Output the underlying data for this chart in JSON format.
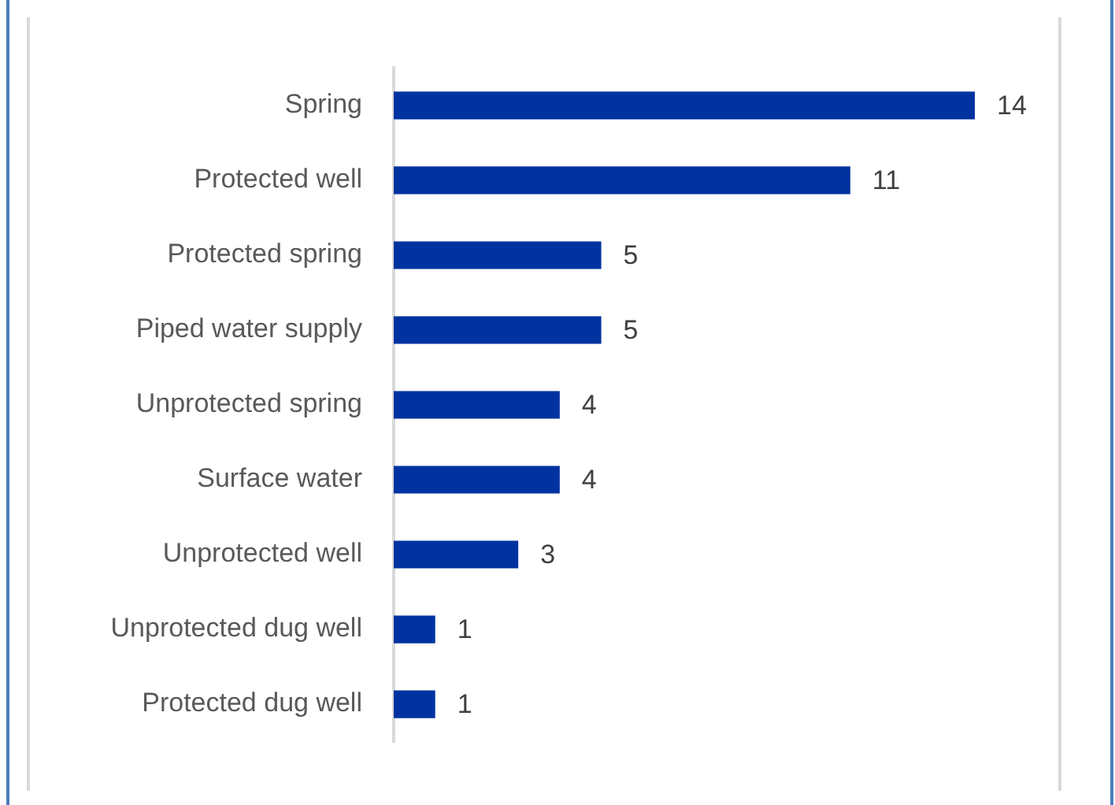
{
  "chart_data": {
    "type": "bar",
    "orientation": "horizontal",
    "categories": [
      "Spring",
      "Protected well",
      "Protected spring",
      "Piped water supply",
      "Unprotected spring",
      "Surface water",
      "Unprotected well",
      "Unprotected dug well",
      "Protected dug well"
    ],
    "values": [
      14,
      11,
      5,
      5,
      4,
      4,
      3,
      1,
      1
    ],
    "color": "#0033a0",
    "data_labels": true,
    "tick_labels": "y"
  }
}
